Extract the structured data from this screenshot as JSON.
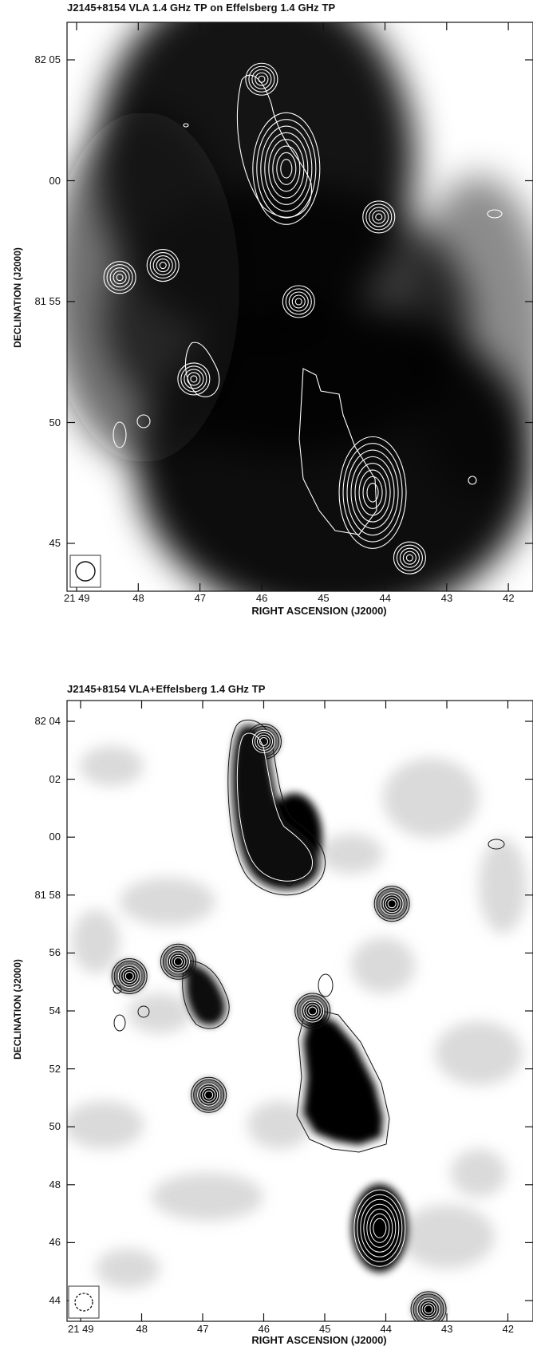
{
  "chart_data": [
    {
      "type": "heatmap",
      "title": "J2145+8154 VLA 1.4 GHz TP on Effelsberg 1.4 GHz TP",
      "xlabel": "RIGHT ASCENSION (J2000)",
      "ylabel": "DECLINATION (J2000)",
      "x_ticks": [
        "21 49",
        "48",
        "47",
        "46",
        "45",
        "44",
        "43",
        "42"
      ],
      "y_ticks": [
        "82 05",
        "00",
        "81 55",
        "50",
        "45"
      ],
      "x_tick_values_min": [
        49,
        48,
        47,
        46,
        45,
        44,
        43,
        42
      ],
      "y_tick_values_arcmin": [
        5,
        0,
        -5,
        -10,
        -15
      ],
      "colormap": "greyscale, dark = bright emission",
      "contour_color": "#ffffff",
      "beam_shown": true,
      "sources": [
        {
          "ra_min": 46.0,
          "dec_arcmin": 4.2,
          "type": "compact"
        },
        {
          "ra_min": 45.6,
          "dec_arcmin": 0.5,
          "type": "extended"
        },
        {
          "ra_min": 44.1,
          "dec_arcmin": -1.5,
          "type": "compact"
        },
        {
          "ra_min": 45.4,
          "dec_arcmin": -5.0,
          "type": "compact"
        },
        {
          "ra_min": 47.6,
          "dec_arcmin": -3.5,
          "type": "compact"
        },
        {
          "ra_min": 48.3,
          "dec_arcmin": -4.0,
          "type": "compact"
        },
        {
          "ra_min": 47.1,
          "dec_arcmin": -8.2,
          "type": "compact"
        },
        {
          "ra_min": 44.2,
          "dec_arcmin": -12.9,
          "type": "extended"
        },
        {
          "ra_min": 43.6,
          "dec_arcmin": -15.6,
          "type": "compact"
        }
      ]
    },
    {
      "type": "heatmap",
      "title": "J2145+8154 VLA+Effelsberg 1.4 GHz TP",
      "xlabel": "RIGHT ASCENSION (J2000)",
      "ylabel": "DECLINATION (J2000)",
      "x_ticks": [
        "21 49",
        "48",
        "47",
        "46",
        "45",
        "44",
        "43",
        "42"
      ],
      "y_ticks": [
        "82 04",
        "02",
        "00",
        "81 58",
        "56",
        "54",
        "52",
        "50",
        "48",
        "46",
        "44"
      ],
      "x_tick_values_min": [
        49,
        48,
        47,
        46,
        45,
        44,
        43,
        42
      ],
      "y_tick_values_arcmin": [
        4,
        2,
        0,
        -2,
        -4,
        -6,
        -8,
        -10,
        -12,
        -14,
        -16
      ],
      "colormap": "greyscale, dark = bright emission",
      "contour_color": "#111111",
      "beam_shown": true,
      "sources": [
        {
          "ra_min": 46.0,
          "dec_arcmin": 3.3,
          "type": "compact"
        },
        {
          "ra_min": 45.5,
          "dec_arcmin": 0.0,
          "type": "extended"
        },
        {
          "ra_min": 43.9,
          "dec_arcmin": -2.3,
          "type": "compact"
        },
        {
          "ra_min": 45.2,
          "dec_arcmin": -6.0,
          "type": "compact"
        },
        {
          "ra_min": 47.4,
          "dec_arcmin": -4.3,
          "type": "compact"
        },
        {
          "ra_min": 48.2,
          "dec_arcmin": -4.8,
          "type": "compact"
        },
        {
          "ra_min": 46.9,
          "dec_arcmin": -8.9,
          "type": "compact"
        },
        {
          "ra_min": 44.1,
          "dec_arcmin": -13.5,
          "type": "extended"
        },
        {
          "ra_min": 43.3,
          "dec_arcmin": -16.3,
          "type": "compact"
        }
      ]
    }
  ]
}
